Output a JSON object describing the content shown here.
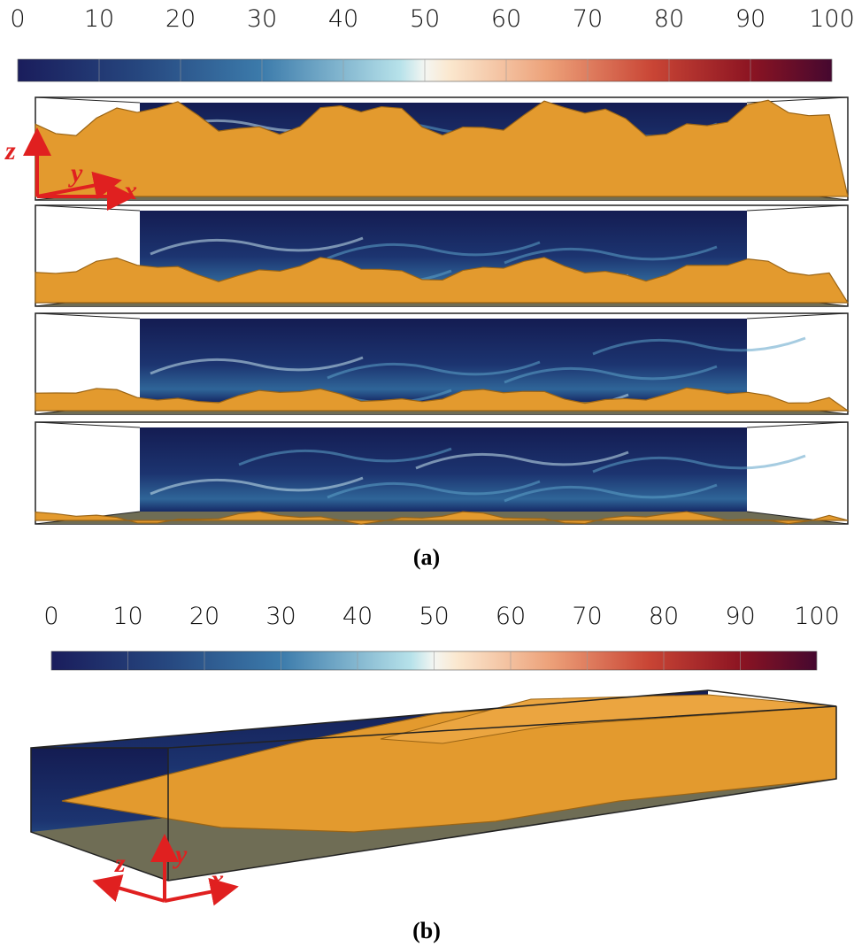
{
  "panel_a": {
    "colorbar": {
      "range": [
        0,
        100
      ],
      "ticks": [
        0,
        10,
        20,
        30,
        40,
        50,
        60,
        70,
        80,
        90,
        100
      ]
    },
    "axes": {
      "z": "z",
      "y": "y",
      "x": "x"
    },
    "label": "(a)"
  },
  "panel_b": {
    "colorbar": {
      "range": [
        0,
        100
      ],
      "ticks": [
        0,
        10,
        20,
        30,
        40,
        50,
        60,
        70,
        80,
        90,
        100
      ]
    },
    "axes": {
      "z": "z",
      "y": "y",
      "x": "x"
    },
    "label": "(b)"
  }
}
